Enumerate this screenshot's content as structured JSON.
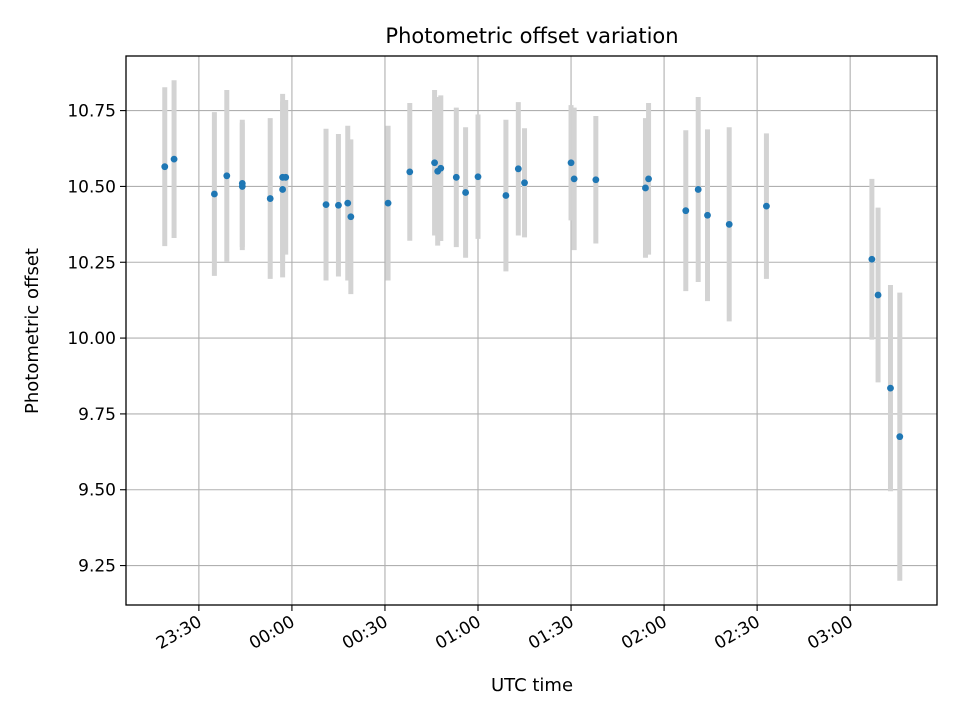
{
  "chart_data": {
    "type": "scatter",
    "title": "Photometric offset variation",
    "xlabel": "UTC time",
    "ylabel": "Photometric offset",
    "x_tick_labels": [
      "23:30",
      "00:00",
      "00:30",
      "01:00",
      "01:30",
      "02:00",
      "02:30",
      "03:00"
    ],
    "x_tick_minutes": [
      -30,
      0,
      30,
      60,
      90,
      120,
      150,
      180
    ],
    "xlim_minutes": [
      -53.5,
      208
    ],
    "y_ticks": [
      9.25,
      9.5,
      9.75,
      10.0,
      10.25,
      10.5,
      10.75
    ],
    "y_tick_labels": [
      "9.25",
      "9.50",
      "9.75",
      "10.00",
      "10.25",
      "10.50",
      "10.75"
    ],
    "ylim": [
      9.12,
      10.93
    ],
    "grid": true,
    "point_color": "#1f77b4",
    "errorbar_color": "#d3d3d3",
    "points": [
      {
        "t": "23:19",
        "y": 10.565,
        "err": 0.262
      },
      {
        "t": "23:22",
        "y": 10.59,
        "err": 0.26
      },
      {
        "t": "23:35",
        "y": 10.475,
        "err": 0.27
      },
      {
        "t": "23:39",
        "y": 10.535,
        "err": 0.283
      },
      {
        "t": "23:44",
        "y": 10.51,
        "err": 0.21
      },
      {
        "t": "23:44",
        "y": 10.5,
        "err": 0.21
      },
      {
        "t": "23:53",
        "y": 10.46,
        "err": 0.265
      },
      {
        "t": "23:57",
        "y": 10.53,
        "err": 0.275
      },
      {
        "t": "23:57",
        "y": 10.49,
        "err": 0.29
      },
      {
        "t": "23:58",
        "y": 10.53,
        "err": 0.255
      },
      {
        "t": "00:11",
        "y": 10.44,
        "err": 0.25
      },
      {
        "t": "00:15",
        "y": 10.438,
        "err": 0.235
      },
      {
        "t": "00:18",
        "y": 10.445,
        "err": 0.255
      },
      {
        "t": "00:19",
        "y": 10.4,
        "err": 0.255
      },
      {
        "t": "00:31",
        "y": 10.445,
        "err": 0.255
      },
      {
        "t": "00:38",
        "y": 10.548,
        "err": 0.227
      },
      {
        "t": "00:46",
        "y": 10.578,
        "err": 0.24
      },
      {
        "t": "00:47",
        "y": 10.55,
        "err": 0.245
      },
      {
        "t": "00:48",
        "y": 10.56,
        "err": 0.24
      },
      {
        "t": "00:53",
        "y": 10.53,
        "err": 0.23
      },
      {
        "t": "00:56",
        "y": 10.48,
        "err": 0.215
      },
      {
        "t": "01:00",
        "y": 10.532,
        "err": 0.205
      },
      {
        "t": "01:09",
        "y": 10.47,
        "err": 0.25
      },
      {
        "t": "01:13",
        "y": 10.558,
        "err": 0.22
      },
      {
        "t": "01:15",
        "y": 10.512,
        "err": 0.18
      },
      {
        "t": "01:30",
        "y": 10.578,
        "err": 0.19
      },
      {
        "t": "01:31",
        "y": 10.525,
        "err": 0.235
      },
      {
        "t": "01:38",
        "y": 10.522,
        "err": 0.21
      },
      {
        "t": "01:54",
        "y": 10.495,
        "err": 0.23
      },
      {
        "t": "01:55",
        "y": 10.525,
        "err": 0.25
      },
      {
        "t": "02:07",
        "y": 10.42,
        "err": 0.265
      },
      {
        "t": "02:11",
        "y": 10.49,
        "err": 0.305
      },
      {
        "t": "02:14",
        "y": 10.405,
        "err": 0.283
      },
      {
        "t": "02:21",
        "y": 10.375,
        "err": 0.32
      },
      {
        "t": "02:33",
        "y": 10.435,
        "err": 0.24
      },
      {
        "t": "03:07",
        "y": 10.26,
        "err": 0.265
      },
      {
        "t": "03:09",
        "y": 10.142,
        "err": 0.288
      },
      {
        "t": "03:13",
        "y": 9.835,
        "err": 0.34
      },
      {
        "t": "03:16",
        "y": 9.675,
        "err": 0.475
      }
    ]
  }
}
